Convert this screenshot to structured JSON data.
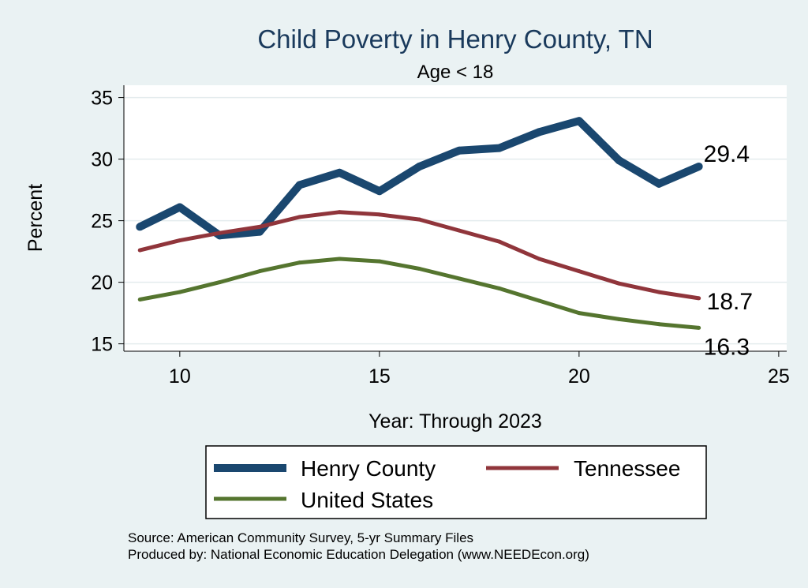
{
  "chart_data": {
    "type": "line",
    "title": "Child Poverty in Henry County, TN",
    "subtitle": "Age < 18",
    "xlabel": "Year: Through 2023",
    "ylabel": "Percent",
    "xlim": [
      8.6,
      25.2
    ],
    "ylim": [
      14.4,
      36
    ],
    "xticks": [
      10,
      15,
      20,
      25
    ],
    "yticks": [
      15,
      20,
      25,
      30,
      35
    ],
    "grid": true,
    "legend_position": "bottom",
    "x": [
      9,
      10,
      11,
      12,
      13,
      14,
      15,
      16,
      17,
      18,
      19,
      20,
      21,
      22,
      23
    ],
    "series": [
      {
        "name": "Henry County",
        "color": "#1a476f",
        "values": [
          24.5,
          26.1,
          23.8,
          24.1,
          27.9,
          28.9,
          27.4,
          29.4,
          30.7,
          30.9,
          32.2,
          33.1,
          29.9,
          28.0,
          29.4
        ],
        "end_label": "29.4"
      },
      {
        "name": "Tennessee",
        "color": "#90353b",
        "values": [
          22.6,
          23.4,
          24.0,
          24.5,
          25.3,
          25.7,
          25.5,
          25.1,
          24.2,
          23.3,
          21.9,
          20.9,
          19.9,
          19.2,
          18.7
        ],
        "end_label": "18.7"
      },
      {
        "name": "United States",
        "color": "#55752f",
        "values": [
          18.6,
          19.2,
          20.0,
          20.9,
          21.6,
          21.9,
          21.7,
          21.1,
          20.3,
          19.5,
          18.5,
          17.5,
          17.0,
          16.6,
          16.3
        ],
        "end_label": "16.3"
      }
    ]
  },
  "source": {
    "line1": "Source: American Community Survey, 5-yr Summary Files",
    "line2": "Produced by: National Economic Education Delegation (www.NEEDEcon.org)"
  }
}
